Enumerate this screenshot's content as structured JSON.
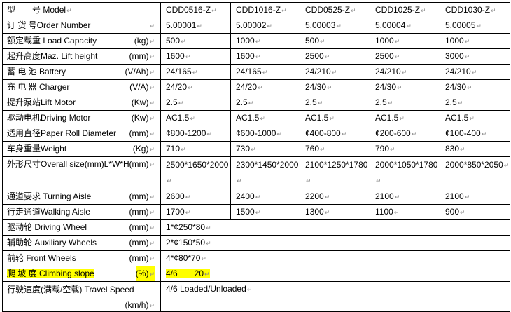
{
  "columns": [
    "CDD0516-Z",
    "CDD1016-Z",
    "CDD0525-Z",
    "CDD1025-Z",
    "CDD1030-Z"
  ],
  "header": {
    "cn": "型　　号",
    "en": "Model"
  },
  "rows": [
    {
      "cn": "订 货 号",
      "en": "Order Number",
      "unit": "",
      "values": [
        "5.00001",
        "5.00002",
        "5.00003",
        "5.00004",
        "5.00005"
      ]
    },
    {
      "cn": "额定载重",
      "en": " Load Capacity",
      "unit": "(kg)",
      "values": [
        "500",
        "1000",
        "500",
        "1000",
        "1000"
      ]
    },
    {
      "cn": "起升高度",
      "en": "Maz. Lift height",
      "unit": "(mm)",
      "values": [
        "1600",
        "1600",
        "2500",
        "2500",
        "3000"
      ]
    },
    {
      "cn": "蓄 电 池",
      "en": " Battery",
      "unit": "(V/Ah)",
      "values": [
        "24/165",
        "24/165",
        "24/210",
        "24/210",
        "24/210"
      ]
    },
    {
      "cn": "充 电 器",
      "en": " Charger",
      "unit": "(V/A)",
      "values": [
        "24/20",
        "24/20",
        "24/30",
        "24/30",
        "24/30"
      ]
    },
    {
      "cn": "提升泵站",
      "en": "Lift Motor",
      "unit": "(Kw)",
      "values": [
        "2.5",
        "2.5",
        "2.5",
        "2.5",
        "2.5"
      ]
    },
    {
      "cn": "驱动电机",
      "en": "Driving Motor",
      "unit": "(Kw)",
      "values": [
        "AC1.5",
        "AC1.5",
        "AC1.5",
        "AC1.5",
        "AC1.5"
      ]
    },
    {
      "cn": "适用直径",
      "en": "Paper Roll Diameter",
      "unit": "(mm)",
      "values": [
        "¢800-1200",
        "¢600-1000",
        "¢400-800",
        "¢200-600",
        "¢100-400"
      ]
    },
    {
      "cn": "车身重量",
      "en": "Weight",
      "unit": "(Kg)",
      "values": [
        "710",
        "730",
        "760",
        "790",
        "830"
      ]
    },
    {
      "cn": "外形尺寸",
      "en": "Overall size(mm)L*W*H",
      "unit": "(mm)",
      "values": [
        "2500*1650*2000",
        "2300*1450*2000",
        "2100*1250*1780",
        "2000*1050*1780",
        "2000*850*2050"
      ]
    },
    {
      "cn": "通道要求",
      "en": " Turning Aisle",
      "unit": "(mm)",
      "values": [
        "2600",
        "2400",
        "2200",
        "2100",
        "2100"
      ]
    },
    {
      "cn": "行走通道",
      "en": "Walking Aisle",
      "unit": "(mm)",
      "values": [
        "1700",
        "1500",
        "1300",
        "1100",
        "900"
      ]
    }
  ],
  "merged_rows": [
    {
      "cn": "驱动轮",
      "en": "  Driving Wheel",
      "unit": "(mm)",
      "value": "1*¢250*80"
    },
    {
      "cn": "辅助轮",
      "en": "  Auxiliary Wheels",
      "unit": "(mm)",
      "value": "2*¢150*50"
    },
    {
      "cn": "前轮",
      "en": " Front Wheels",
      "unit": "(mm)",
      "value": "4*¢80*70"
    },
    {
      "cn": "爬 坡 度",
      "en": "  Climbing slope",
      "unit": "(%)",
      "value": "4/6　　20",
      "highlight": "#ffff00"
    },
    {
      "cn": "行驶速度(满载/空载)",
      "en": " Travel Speed",
      "unit": "(km/h)",
      "value": "4/6 Loaded/Unloaded"
    }
  ]
}
